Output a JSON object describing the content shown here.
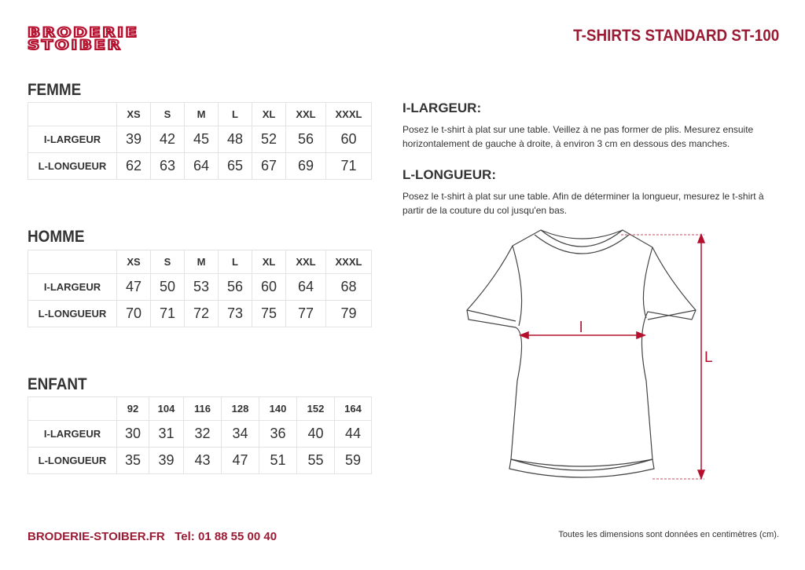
{
  "header": {
    "logo_line1": "BRODERIE",
    "logo_line2": "STOIBER",
    "title": "T-SHIRTS STANDARD ST-100"
  },
  "tables": [
    {
      "heading": "FEMME",
      "sizes": [
        "XS",
        "S",
        "M",
        "L",
        "XL",
        "XXL",
        "XXXL"
      ],
      "rows": [
        {
          "label": "I-LARGEUR",
          "values": [
            "39",
            "42",
            "45",
            "48",
            "52",
            "56",
            "60"
          ]
        },
        {
          "label": "L-LONGUEUR",
          "values": [
            "62",
            "63",
            "64",
            "65",
            "67",
            "69",
            "71"
          ]
        }
      ]
    },
    {
      "heading": "HOMME",
      "sizes": [
        "XS",
        "S",
        "M",
        "L",
        "XL",
        "XXL",
        "XXXL"
      ],
      "rows": [
        {
          "label": "I-LARGEUR",
          "values": [
            "47",
            "50",
            "53",
            "56",
            "60",
            "64",
            "68"
          ]
        },
        {
          "label": "L-LONGUEUR",
          "values": [
            "70",
            "71",
            "72",
            "73",
            "75",
            "77",
            "79"
          ]
        }
      ]
    },
    {
      "heading": "ENFANT",
      "sizes": [
        "92",
        "104",
        "116",
        "128",
        "140",
        "152",
        "164"
      ],
      "rows": [
        {
          "label": "I-LARGEUR",
          "values": [
            "30",
            "31",
            "32",
            "34",
            "36",
            "40",
            "44"
          ]
        },
        {
          "label": "L-LONGUEUR",
          "values": [
            "35",
            "39",
            "43",
            "47",
            "51",
            "55",
            "59"
          ]
        }
      ]
    }
  ],
  "instructions": [
    {
      "heading": "I-LARGEUR:",
      "text": "Posez le t-shirt à plat sur une table. Veillez à ne pas former de plis. Mesurez ensuite horizontalement de gauche à droite, à environ 3 cm en dessous des manches."
    },
    {
      "heading": "L-LONGUEUR:",
      "text": "Posez le t-shirt à plat sur une table. Afin de déterminer la longueur, mesurez le t-shirt à partir de la couture du col jusqu'en bas."
    }
  ],
  "diagram": {
    "width_label": "l",
    "length_label": "L",
    "accent": "#b5102e"
  },
  "footer": {
    "website": "BRODERIE-STOIBER.FR",
    "phone": "Tel: 01 88 55 00 40",
    "note": "Toutes les dimensions sont données en centimètres (cm)."
  }
}
